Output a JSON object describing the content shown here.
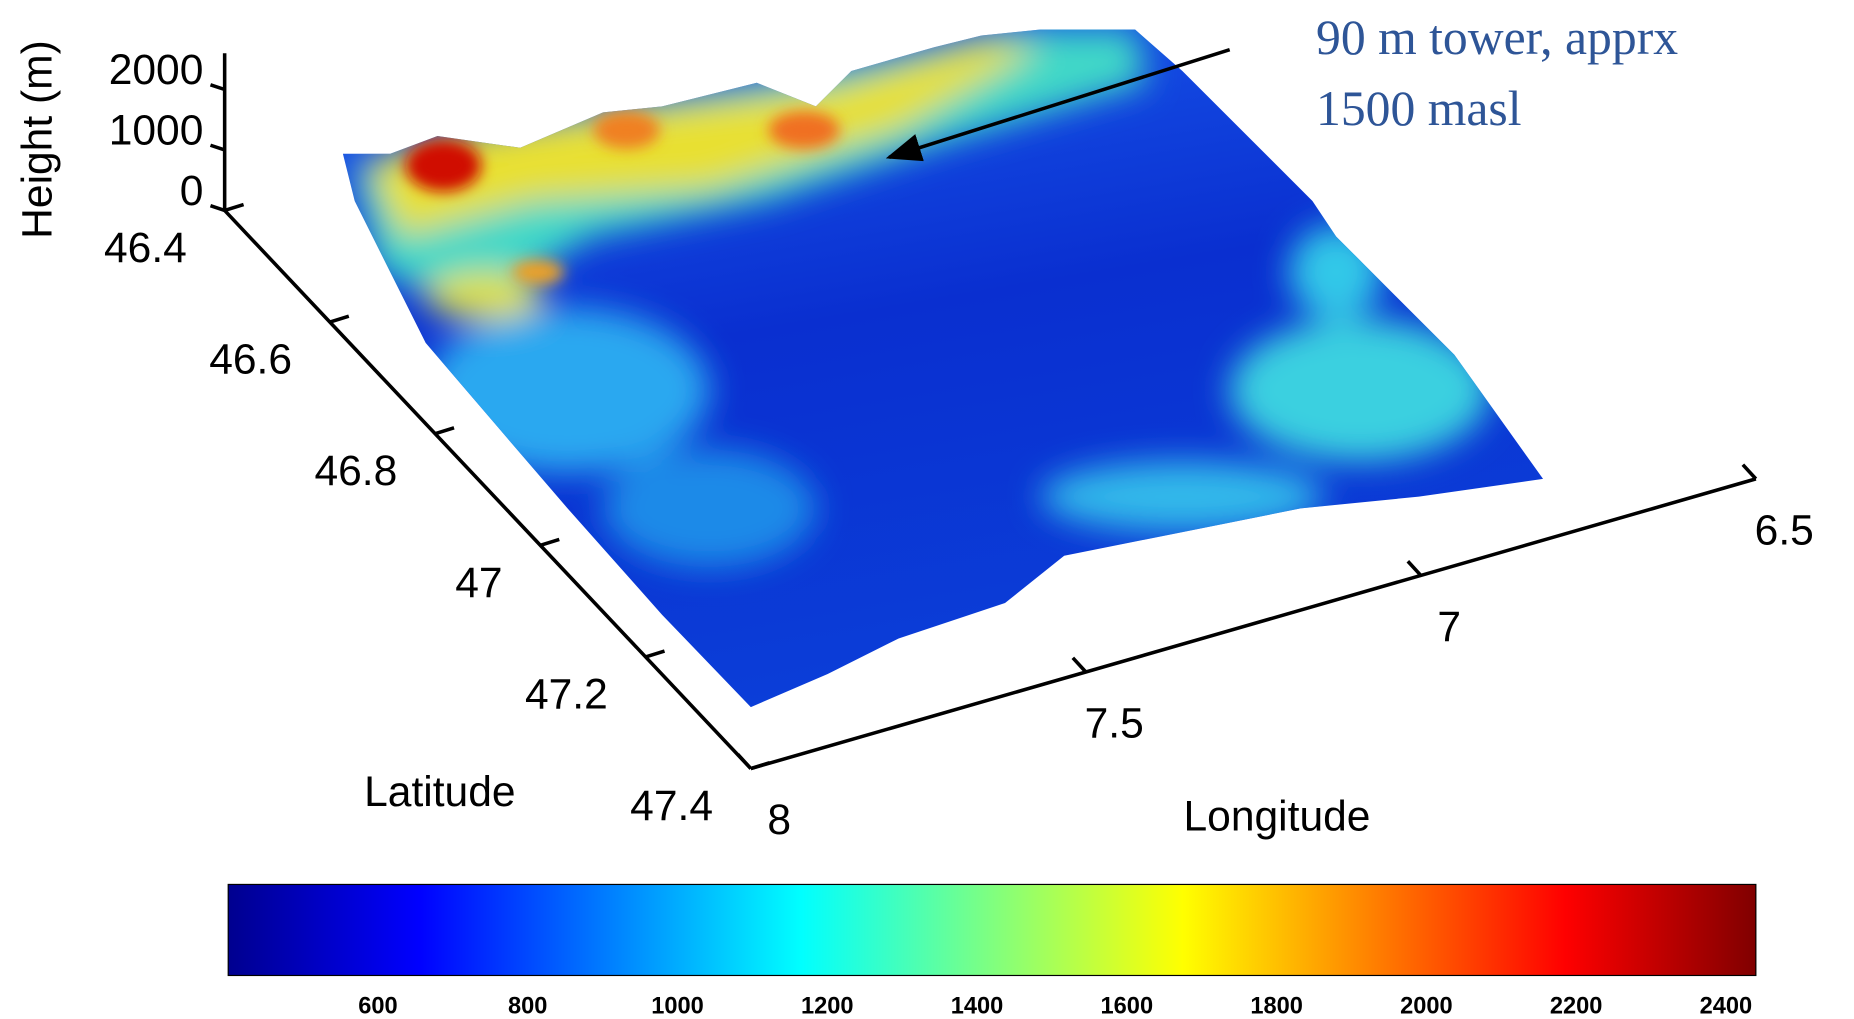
{
  "chart_data": {
    "type": "surface",
    "xlabel": "Longitude",
    "ylabel": "Latitude",
    "zlabel": "Height (m)",
    "xlim": [
      8,
      6.5
    ],
    "xticks": [
      8,
      7.5,
      7,
      6.5
    ],
    "ylim": [
      46.4,
      47.4
    ],
    "yticks": [
      46.4,
      46.6,
      46.8,
      47,
      47.2,
      47.4
    ],
    "zlim": [
      0,
      2600
    ],
    "zticks": [
      0,
      1000,
      2000
    ],
    "colorbar": {
      "colormap": "jet",
      "clim": [
        400,
        2440
      ],
      "ticks": [
        600,
        800,
        1000,
        1200,
        1400,
        1600,
        1800,
        2000,
        2200,
        2400
      ]
    },
    "annotation": [
      "90 m tower, apprx",
      "1500 masl"
    ],
    "annotation_color": "#2e5597"
  }
}
